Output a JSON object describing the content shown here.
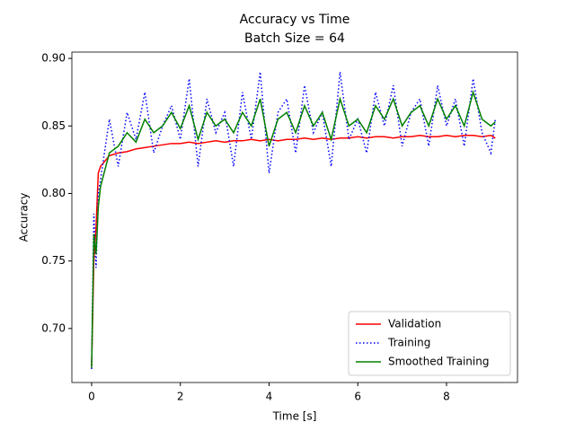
{
  "chart_data": {
    "type": "line",
    "title": [
      "Accuracy vs Time",
      "Batch Size = 64"
    ],
    "x_label": "Time [s]",
    "y_label": "Accuracy",
    "x": [
      0,
      0.05,
      0.1,
      0.15,
      0.2,
      0.4,
      0.6,
      0.8,
      1,
      1.2,
      1.4,
      1.6,
      1.8,
      2,
      2.2,
      2.4,
      2.6,
      2.8,
      3,
      3.2,
      3.4,
      3.6,
      3.8,
      4,
      4.2,
      4.4,
      4.6,
      4.8,
      5,
      5.2,
      5.4,
      5.6,
      5.8,
      6,
      6.2,
      6.4,
      6.6,
      6.8,
      7,
      7.2,
      7.4,
      7.6,
      7.8,
      8,
      8.2,
      8.4,
      8.6,
      8.8,
      9,
      9.1
    ],
    "series": [
      {
        "name": "Validation",
        "color": "#ff0000",
        "linestyle": "solid",
        "values": [
          0.672,
          0.75,
          0.775,
          0.815,
          0.82,
          0.828,
          0.83,
          0.831,
          0.833,
          0.834,
          0.835,
          0.836,
          0.837,
          0.837,
          0.838,
          0.837,
          0.838,
          0.839,
          0.838,
          0.839,
          0.839,
          0.84,
          0.839,
          0.84,
          0.839,
          0.84,
          0.84,
          0.841,
          0.84,
          0.841,
          0.84,
          0.841,
          0.841,
          0.842,
          0.841,
          0.842,
          0.842,
          0.841,
          0.842,
          0.842,
          0.843,
          0.842,
          0.842,
          0.843,
          0.842,
          0.843,
          0.843,
          0.842,
          0.843,
          0.841
        ]
      },
      {
        "name": "Training",
        "color": "#0000ff",
        "linestyle": "dotted",
        "values": [
          0.67,
          0.785,
          0.745,
          0.8,
          0.81,
          0.855,
          0.82,
          0.86,
          0.84,
          0.875,
          0.83,
          0.85,
          0.865,
          0.84,
          0.885,
          0.82,
          0.87,
          0.845,
          0.86,
          0.82,
          0.875,
          0.84,
          0.89,
          0.815,
          0.86,
          0.87,
          0.83,
          0.88,
          0.845,
          0.86,
          0.82,
          0.89,
          0.84,
          0.855,
          0.83,
          0.875,
          0.85,
          0.88,
          0.835,
          0.86,
          0.87,
          0.835,
          0.88,
          0.85,
          0.87,
          0.835,
          0.885,
          0.845,
          0.83,
          0.855
        ]
      },
      {
        "name": "Smoothed Training",
        "color": "#008000",
        "linestyle": "solid",
        "values": [
          0.671,
          0.77,
          0.755,
          0.79,
          0.805,
          0.83,
          0.835,
          0.845,
          0.838,
          0.855,
          0.845,
          0.85,
          0.86,
          0.848,
          0.865,
          0.84,
          0.86,
          0.85,
          0.855,
          0.845,
          0.86,
          0.85,
          0.87,
          0.835,
          0.855,
          0.86,
          0.845,
          0.865,
          0.85,
          0.86,
          0.84,
          0.87,
          0.85,
          0.855,
          0.845,
          0.865,
          0.855,
          0.87,
          0.85,
          0.86,
          0.865,
          0.85,
          0.87,
          0.855,
          0.865,
          0.85,
          0.875,
          0.855,
          0.85,
          0.853
        ]
      }
    ],
    "xlim": [
      -0.445,
      9.6
    ],
    "xticks": [
      0,
      2,
      4,
      6,
      8
    ],
    "ylim": [
      0.66,
      0.9047
    ],
    "yticks": [
      {
        "value": 0.7,
        "label": "0.70"
      },
      0.75,
      {
        "value": 0.8,
        "label": "0.80"
      },
      0.85,
      {
        "value": 0.9,
        "label": "0.90"
      }
    ],
    "legend": "lower right"
  }
}
